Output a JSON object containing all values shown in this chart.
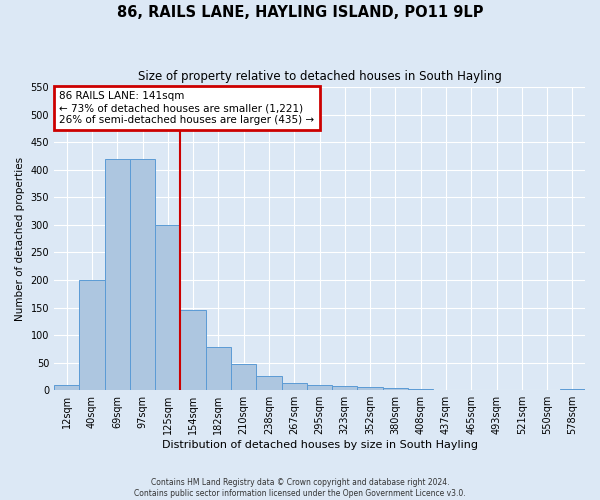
{
  "title": "86, RAILS LANE, HAYLING ISLAND, PO11 9LP",
  "subtitle": "Size of property relative to detached houses in South Hayling",
  "xlabel": "Distribution of detached houses by size in South Hayling",
  "ylabel": "Number of detached properties",
  "bar_labels": [
    "12sqm",
    "40sqm",
    "69sqm",
    "97sqm",
    "125sqm",
    "154sqm",
    "182sqm",
    "210sqm",
    "238sqm",
    "267sqm",
    "295sqm",
    "323sqm",
    "352sqm",
    "380sqm",
    "408sqm",
    "437sqm",
    "465sqm",
    "493sqm",
    "521sqm",
    "550sqm",
    "578sqm"
  ],
  "bar_values": [
    10,
    200,
    420,
    420,
    300,
    145,
    78,
    48,
    25,
    13,
    10,
    8,
    6,
    4,
    2,
    1,
    0,
    0,
    0,
    0,
    3
  ],
  "bar_color": "#adc6e0",
  "bar_edge_color": "#5b9bd5",
  "vline_x": 5,
  "vline_color": "#cc0000",
  "annotation_title": "86 RAILS LANE: 141sqm",
  "annotation_line1": "← 73% of detached houses are smaller (1,221)",
  "annotation_line2": "26% of semi-detached houses are larger (435) →",
  "annotation_box_color": "#cc0000",
  "ylim": [
    0,
    550
  ],
  "yticks": [
    0,
    50,
    100,
    150,
    200,
    250,
    300,
    350,
    400,
    450,
    500,
    550
  ],
  "background_color": "#dce8f5",
  "grid_color": "#ffffff",
  "footer_line1": "Contains HM Land Registry data © Crown copyright and database right 2024.",
  "footer_line2": "Contains public sector information licensed under the Open Government Licence v3.0."
}
